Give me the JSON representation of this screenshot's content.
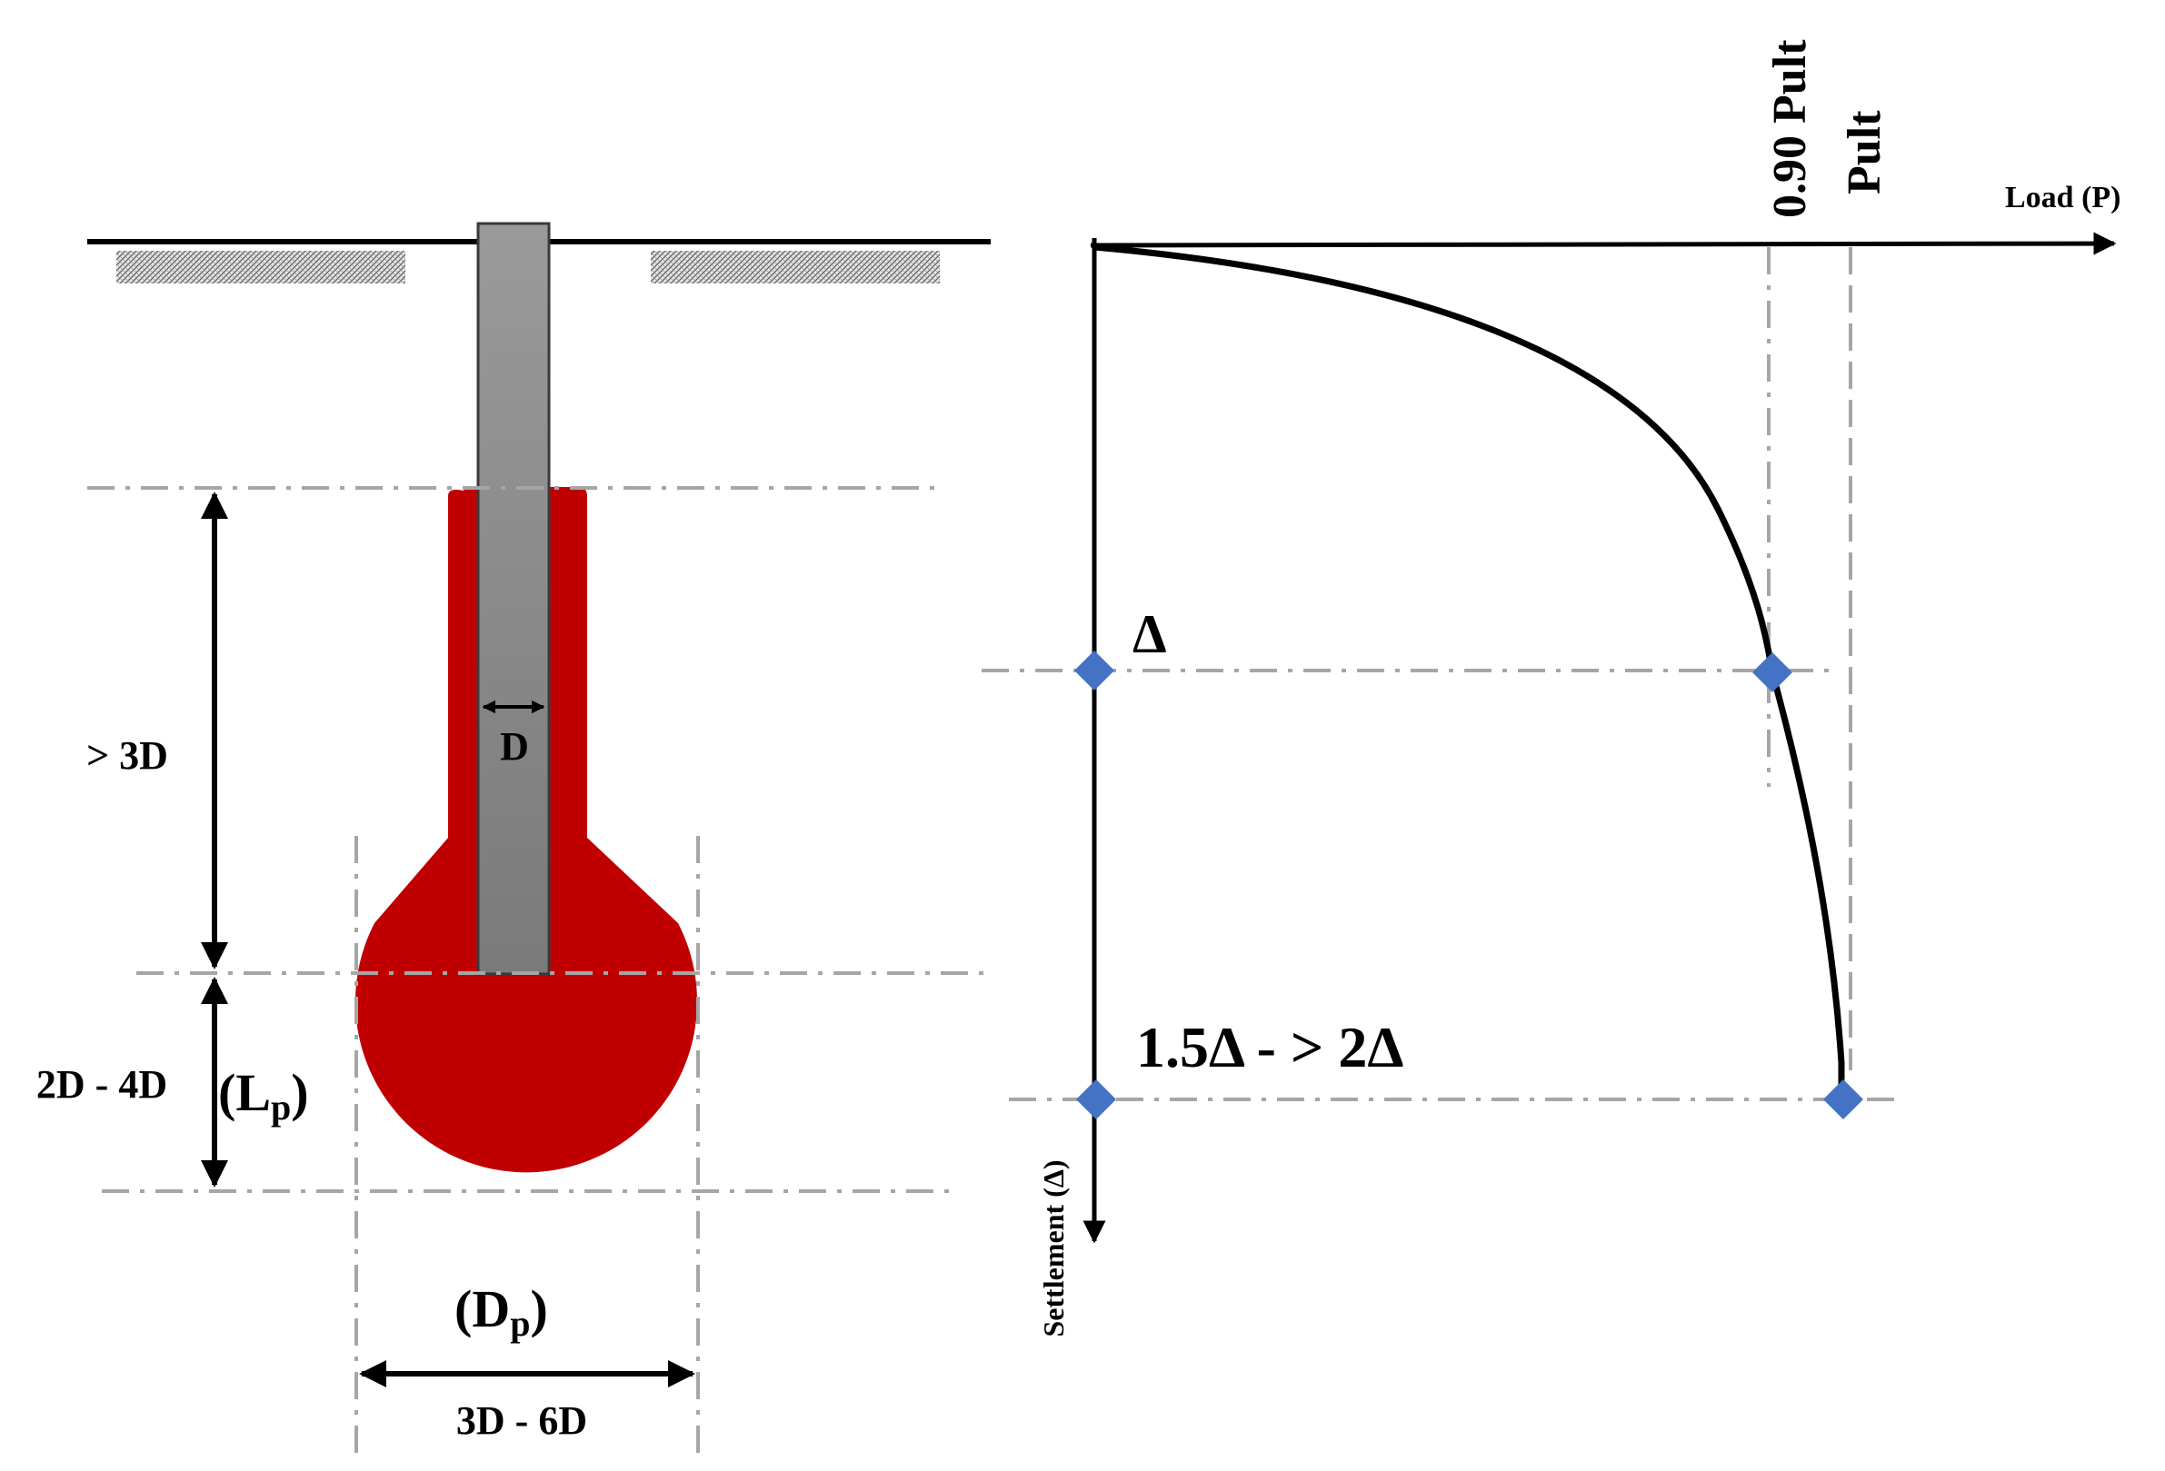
{
  "colors": {
    "pile": "#8f8f8f",
    "bulb": "#c00000",
    "marker": "#4472c4",
    "guide": "#a6a6a6",
    "ink": "#000000"
  },
  "pile_diagram": {
    "shaft_width_label": "D",
    "bulb_spacing_label": "> 3D",
    "bulb_length_label": "2D - 4D",
    "bulb_length_symbol": "L",
    "bulb_length_subscript": "p",
    "bulb_diameter_symbol": "D",
    "bulb_diameter_subscript": "p",
    "bulb_diameter_label": "3D - 6D"
  },
  "load_settlement_chart": {
    "x_axis_label": "Load (P)",
    "y_axis_label": "Settlement (Δ)",
    "reference_load_labels": [
      "0.90 Pult",
      "Pult"
    ],
    "settlement_marks": [
      "Δ",
      "1.5Δ - > 2Δ"
    ]
  }
}
